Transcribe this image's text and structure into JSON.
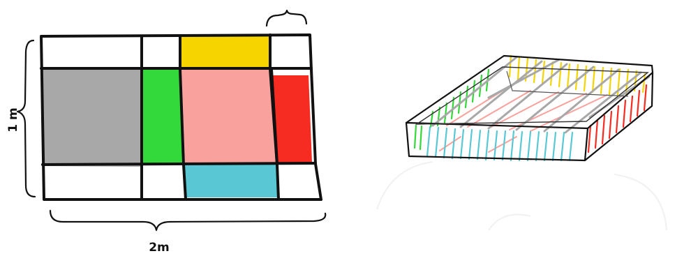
{
  "labels": {
    "height": "1 m",
    "width": "2m"
  },
  "colors": {
    "grey": "#a8a8a8",
    "green": "#33d93a",
    "yellow": "#f6d400",
    "pink": "#f9a19c",
    "red": "#f62b22",
    "cyan": "#59c8d4",
    "white": "#ffffff",
    "outline": "#111111"
  },
  "net_regions": [
    {
      "name": "base",
      "color": "pink"
    },
    {
      "name": "side-left",
      "color": "grey"
    },
    {
      "name": "side-back-left",
      "color": "green"
    },
    {
      "name": "side-top",
      "color": "yellow"
    },
    {
      "name": "side-right",
      "color": "red"
    },
    {
      "name": "side-bottom",
      "color": "cyan"
    }
  ]
}
